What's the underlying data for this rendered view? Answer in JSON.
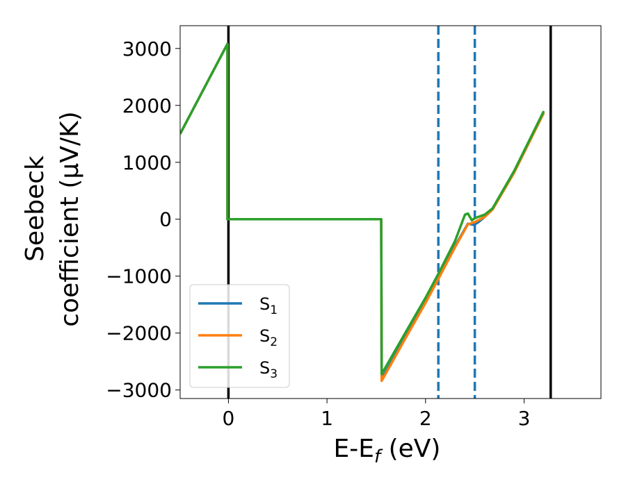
{
  "chart_data": {
    "type": "line",
    "xlabel": "E-E_f (eV)",
    "xlabel_parts": {
      "main": "E-E",
      "sub": "f",
      "unit": " (eV)"
    },
    "ylabel_lines": [
      "Seebeck",
      "coefficient  (μV/K)"
    ],
    "xlim": [
      -0.49,
      3.78
    ],
    "ylim": [
      -3150,
      3400
    ],
    "xticks": [
      0,
      1,
      2,
      3
    ],
    "xtick_labels": [
      "0",
      "1",
      "2",
      "3"
    ],
    "yticks": [
      -3000,
      -2000,
      -1000,
      0,
      1000,
      2000,
      3000
    ],
    "ytick_labels": [
      "−3000",
      "−2000",
      "−1000",
      "0",
      "1000",
      "2000",
      "3000"
    ],
    "grid": false,
    "legend_position": "lower left",
    "vertical_lines": [
      {
        "x": 0.0,
        "color": "#000000",
        "style": "solid"
      },
      {
        "x": 3.27,
        "color": "#000000",
        "style": "solid"
      },
      {
        "x": 2.13,
        "color": "#1f77b4",
        "style": "dashed"
      },
      {
        "x": 2.5,
        "color": "#1f77b4",
        "style": "dashed"
      }
    ],
    "series": [
      {
        "name": "S1",
        "label_main": "S",
        "label_sub": "1",
        "color": "#1f77b4",
        "points": [
          [
            -0.49,
            1500
          ],
          [
            -0.01,
            3080
          ],
          [
            -0.01,
            0
          ],
          [
            0.01,
            0
          ],
          [
            1.55,
            0
          ],
          [
            1.555,
            -2810
          ],
          [
            1.8,
            -2060
          ],
          [
            2.0,
            -1440
          ],
          [
            2.13,
            -1020
          ],
          [
            2.3,
            -470
          ],
          [
            2.43,
            -80
          ],
          [
            2.49,
            -100
          ],
          [
            2.53,
            -60
          ],
          [
            2.6,
            40
          ],
          [
            2.68,
            180
          ],
          [
            2.9,
            830
          ],
          [
            3.2,
            1870
          ]
        ]
      },
      {
        "name": "S2",
        "label_main": "S",
        "label_sub": "2",
        "color": "#ff7f0e",
        "points": [
          [
            -0.49,
            1500
          ],
          [
            -0.01,
            3080
          ],
          [
            -0.01,
            0
          ],
          [
            0.01,
            0
          ],
          [
            1.55,
            0
          ],
          [
            1.555,
            -2840
          ],
          [
            1.8,
            -2080
          ],
          [
            2.0,
            -1470
          ],
          [
            2.13,
            -1050
          ],
          [
            2.3,
            -490
          ],
          [
            2.43,
            -90
          ],
          [
            2.5,
            -50
          ],
          [
            2.6,
            40
          ],
          [
            2.68,
            170
          ],
          [
            2.9,
            820
          ],
          [
            3.2,
            1870
          ]
        ]
      },
      {
        "name": "S3",
        "label_main": "S",
        "label_sub": "3",
        "color": "#2ca02c",
        "points": [
          [
            -0.49,
            1500
          ],
          [
            -0.01,
            3080
          ],
          [
            -0.01,
            0
          ],
          [
            0.01,
            0
          ],
          [
            1.55,
            0
          ],
          [
            1.555,
            -2720
          ],
          [
            1.8,
            -1980
          ],
          [
            2.0,
            -1380
          ],
          [
            2.13,
            -960
          ],
          [
            2.3,
            -380
          ],
          [
            2.4,
            80
          ],
          [
            2.43,
            100
          ],
          [
            2.47,
            -20
          ],
          [
            2.5,
            20
          ],
          [
            2.6,
            80
          ],
          [
            2.68,
            190
          ],
          [
            2.9,
            850
          ],
          [
            3.2,
            1900
          ]
        ]
      }
    ]
  }
}
